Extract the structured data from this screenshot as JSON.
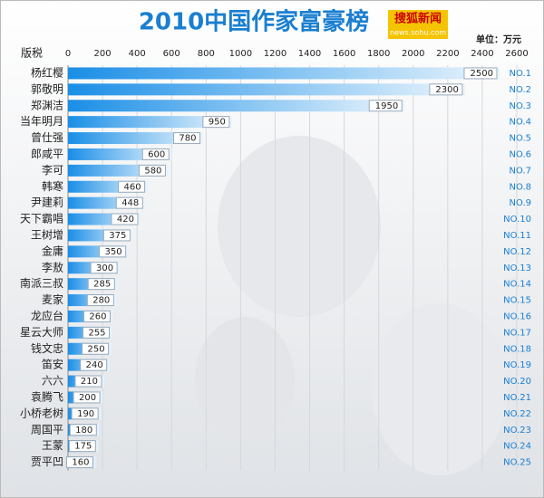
{
  "chart_data": {
    "type": "bar",
    "orientation": "horizontal",
    "title": "2010中国作家富豪榜",
    "logo": "搜狐新闻",
    "logo_url": "news.sohu.com",
    "unit": "单位：万元",
    "axis_label": "版税",
    "categories": [
      "杨红樱",
      "郭敬明",
      "郑渊洁",
      "当年明月",
      "曾仕强",
      "郎咸平",
      "李可",
      "韩寒",
      "尹建莉",
      "天下霸唱",
      "王树增",
      "金庸",
      "李敖",
      "南派三叔",
      "麦家",
      "龙应台",
      "星云大师",
      "钱文忠",
      "笛安",
      "六六",
      "袁腾飞",
      "小桥老树",
      "周国平",
      "王蒙",
      "贾平凹"
    ],
    "values": [
      2500,
      2300,
      1950,
      950,
      780,
      600,
      580,
      460,
      448,
      420,
      375,
      350,
      300,
      285,
      280,
      260,
      255,
      250,
      240,
      210,
      200,
      190,
      180,
      175,
      160
    ],
    "ranks": [
      "NO.1",
      "NO.2",
      "NO.3",
      "NO.4",
      "NO.5",
      "NO.6",
      "NO.7",
      "NO.8",
      "NO.9",
      "NO.10",
      "NO.11",
      "NO.12",
      "NO.13",
      "NO.14",
      "NO.15",
      "NO.16",
      "NO.17",
      "NO.18",
      "NO.19",
      "NO.20",
      "NO.21",
      "NO.22",
      "NO.23",
      "NO.24",
      "NO.25"
    ],
    "color": "#1a8ee6",
    "xlim": [
      0,
      2600
    ],
    "xticks": [
      0,
      200,
      400,
      600,
      800,
      1000,
      1200,
      1400,
      1600,
      1800,
      2000,
      2200,
      2400,
      2600
    ],
    "grid": true
  }
}
